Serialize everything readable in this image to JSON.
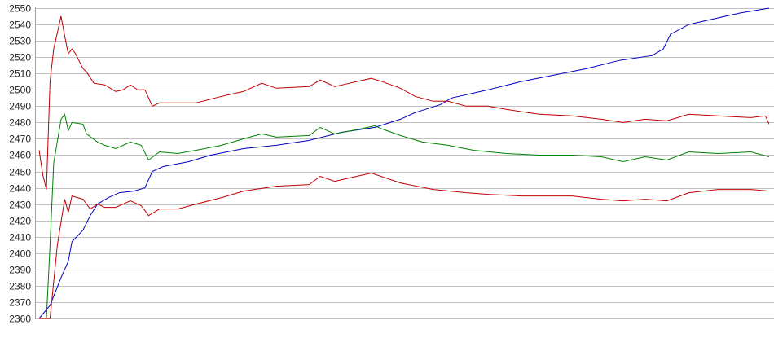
{
  "chart_data": {
    "type": "line",
    "title": "",
    "xlabel": "",
    "ylabel": "",
    "ylim": [
      2360,
      2550
    ],
    "xlim": [
      0,
      200
    ],
    "yticks": [
      2360,
      2370,
      2380,
      2390,
      2400,
      2410,
      2420,
      2430,
      2440,
      2450,
      2460,
      2470,
      2480,
      2490,
      2500,
      2510,
      2520,
      2530,
      2540,
      2550
    ],
    "grid": true,
    "grid_color": "#c0c0c0",
    "legend": "none",
    "series": [
      {
        "color": "#0000c0",
        "points": [
          [
            0,
            2360
          ],
          [
            3,
            2368
          ],
          [
            6,
            2385
          ],
          [
            8,
            2395
          ],
          [
            9,
            2407
          ],
          [
            12,
            2414
          ],
          [
            14,
            2423
          ],
          [
            16,
            2430
          ],
          [
            19,
            2434
          ],
          [
            22,
            2437
          ],
          [
            26,
            2438
          ],
          [
            29,
            2440
          ],
          [
            31,
            2450
          ],
          [
            34,
            2453
          ],
          [
            41,
            2456
          ],
          [
            47,
            2460
          ],
          [
            56,
            2464
          ],
          [
            65,
            2466
          ],
          [
            74,
            2469
          ],
          [
            83,
            2474
          ],
          [
            92,
            2477
          ],
          [
            99,
            2482
          ],
          [
            103,
            2486
          ],
          [
            110,
            2491
          ],
          [
            113,
            2495
          ],
          [
            123,
            2500
          ],
          [
            132,
            2505
          ],
          [
            141,
            2509
          ],
          [
            150,
            2513
          ],
          [
            159,
            2518
          ],
          [
            168,
            2521
          ],
          [
            171,
            2525
          ],
          [
            173,
            2534
          ],
          [
            178,
            2540
          ],
          [
            186,
            2544
          ],
          [
            192,
            2547
          ],
          [
            200,
            2550
          ]
        ]
      },
      {
        "color": "#c00000",
        "points": [
          [
            0,
            2463
          ],
          [
            1,
            2448
          ],
          [
            2,
            2439
          ],
          [
            3,
            2505
          ],
          [
            4,
            2525
          ],
          [
            6,
            2545
          ],
          [
            7,
            2533
          ],
          [
            8,
            2522
          ],
          [
            9,
            2525
          ],
          [
            10,
            2522
          ],
          [
            12,
            2513
          ],
          [
            13,
            2511
          ],
          [
            15,
            2504
          ],
          [
            18,
            2503
          ],
          [
            21,
            2499
          ],
          [
            23,
            2500
          ],
          [
            25,
            2503
          ],
          [
            27,
            2500
          ],
          [
            29,
            2500
          ],
          [
            31,
            2490
          ],
          [
            33,
            2492
          ],
          [
            38,
            2492
          ],
          [
            43,
            2492
          ],
          [
            50,
            2496
          ],
          [
            56,
            2499
          ],
          [
            61,
            2504
          ],
          [
            65,
            2501
          ],
          [
            74,
            2502
          ],
          [
            77,
            2506
          ],
          [
            81,
            2502
          ],
          [
            85,
            2504
          ],
          [
            91,
            2507
          ],
          [
            94,
            2505
          ],
          [
            99,
            2501
          ],
          [
            103,
            2496
          ],
          [
            108,
            2493
          ],
          [
            112,
            2493
          ],
          [
            117,
            2490
          ],
          [
            123,
            2490
          ],
          [
            128,
            2488
          ],
          [
            137,
            2485
          ],
          [
            146,
            2484
          ],
          [
            154,
            2482
          ],
          [
            160,
            2480
          ],
          [
            166,
            2482
          ],
          [
            172,
            2481
          ],
          [
            178,
            2485
          ],
          [
            186,
            2484
          ],
          [
            195,
            2483
          ],
          [
            199,
            2484
          ],
          [
            200,
            2479
          ]
        ]
      },
      {
        "color": "#008000",
        "points": [
          [
            0,
            2360
          ],
          [
            2,
            2360
          ],
          [
            3,
            2405
          ],
          [
            4,
            2455
          ],
          [
            6,
            2482
          ],
          [
            7,
            2485
          ],
          [
            8,
            2475
          ],
          [
            9,
            2480
          ],
          [
            12,
            2479
          ],
          [
            13,
            2473
          ],
          [
            16,
            2468
          ],
          [
            18,
            2466
          ],
          [
            21,
            2464
          ],
          [
            25,
            2468
          ],
          [
            28,
            2466
          ],
          [
            30,
            2457
          ],
          [
            33,
            2462
          ],
          [
            38,
            2461
          ],
          [
            43,
            2463
          ],
          [
            50,
            2466
          ],
          [
            56,
            2470
          ],
          [
            61,
            2473
          ],
          [
            65,
            2471
          ],
          [
            74,
            2472
          ],
          [
            77,
            2477
          ],
          [
            81,
            2473
          ],
          [
            88,
            2476
          ],
          [
            92,
            2478
          ],
          [
            94,
            2476
          ],
          [
            99,
            2472
          ],
          [
            105,
            2468
          ],
          [
            112,
            2466
          ],
          [
            119,
            2463
          ],
          [
            128,
            2461
          ],
          [
            137,
            2460
          ],
          [
            146,
            2460
          ],
          [
            154,
            2459
          ],
          [
            160,
            2456
          ],
          [
            166,
            2459
          ],
          [
            172,
            2457
          ],
          [
            178,
            2462
          ],
          [
            186,
            2461
          ],
          [
            195,
            2462
          ],
          [
            200,
            2459
          ]
        ]
      },
      {
        "color": "#c00000",
        "points": [
          [
            0,
            2360
          ],
          [
            3,
            2360
          ],
          [
            5,
            2405
          ],
          [
            7,
            2433
          ],
          [
            8,
            2425
          ],
          [
            9,
            2435
          ],
          [
            12,
            2433
          ],
          [
            14,
            2427
          ],
          [
            16,
            2430
          ],
          [
            18,
            2428
          ],
          [
            21,
            2428
          ],
          [
            25,
            2432
          ],
          [
            28,
            2429
          ],
          [
            30,
            2423
          ],
          [
            33,
            2427
          ],
          [
            38,
            2427
          ],
          [
            43,
            2430
          ],
          [
            50,
            2434
          ],
          [
            56,
            2438
          ],
          [
            65,
            2441
          ],
          [
            74,
            2442
          ],
          [
            77,
            2447
          ],
          [
            81,
            2444
          ],
          [
            85,
            2446
          ],
          [
            91,
            2449
          ],
          [
            99,
            2443
          ],
          [
            108,
            2439
          ],
          [
            117,
            2437
          ],
          [
            123,
            2436
          ],
          [
            132,
            2435
          ],
          [
            146,
            2435
          ],
          [
            154,
            2433
          ],
          [
            160,
            2432
          ],
          [
            166,
            2433
          ],
          [
            172,
            2432
          ],
          [
            178,
            2437
          ],
          [
            186,
            2439
          ],
          [
            195,
            2439
          ],
          [
            200,
            2438
          ]
        ]
      }
    ]
  }
}
